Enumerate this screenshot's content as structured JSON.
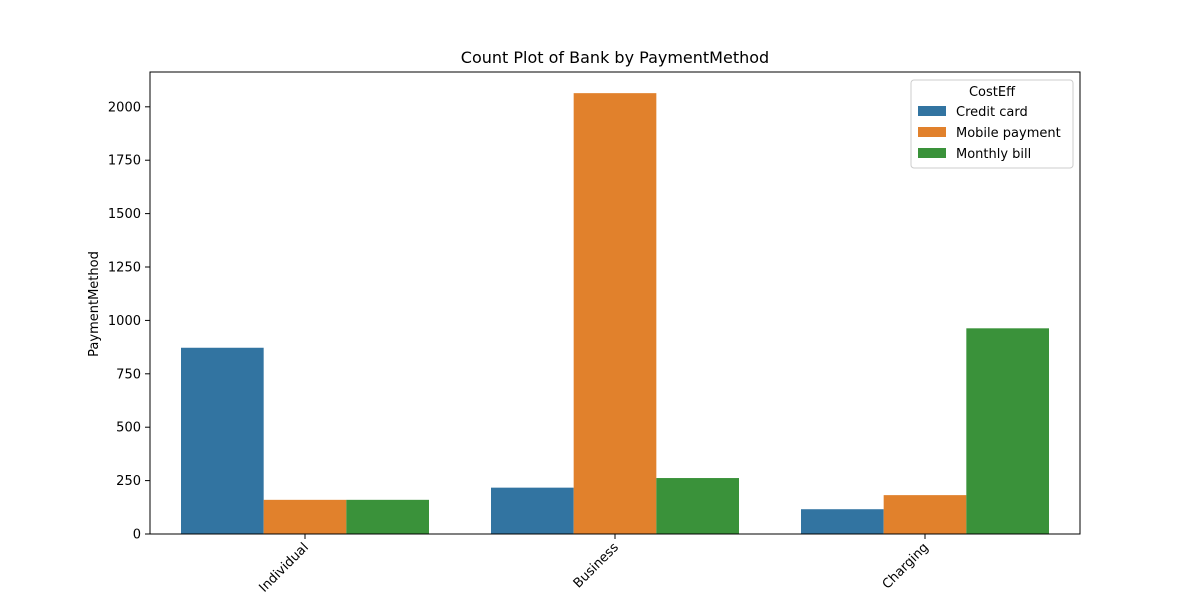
{
  "chart_data": {
    "type": "bar",
    "title": "Count Plot of Bank by PaymentMethod",
    "xlabel": "",
    "ylabel": "PaymentMethod",
    "categories": [
      "Individual",
      "Business",
      "Charging"
    ],
    "series": [
      {
        "name": "Credit card",
        "color": "#3274a1",
        "values": [
          872,
          217,
          116
        ]
      },
      {
        "name": "Mobile payment",
        "color": "#e1812c",
        "values": [
          160,
          2064,
          182
        ]
      },
      {
        "name": "Monthly bill",
        "color": "#3a923a",
        "values": [
          160,
          262,
          963
        ]
      }
    ],
    "ylim": [
      0,
      2163
    ],
    "yticks": [
      0,
      250,
      500,
      750,
      1000,
      1250,
      1500,
      1750,
      2000
    ],
    "xtick_rotation": 45,
    "grid": false,
    "legend": {
      "title": "CostEff",
      "placement": "top-right"
    }
  }
}
